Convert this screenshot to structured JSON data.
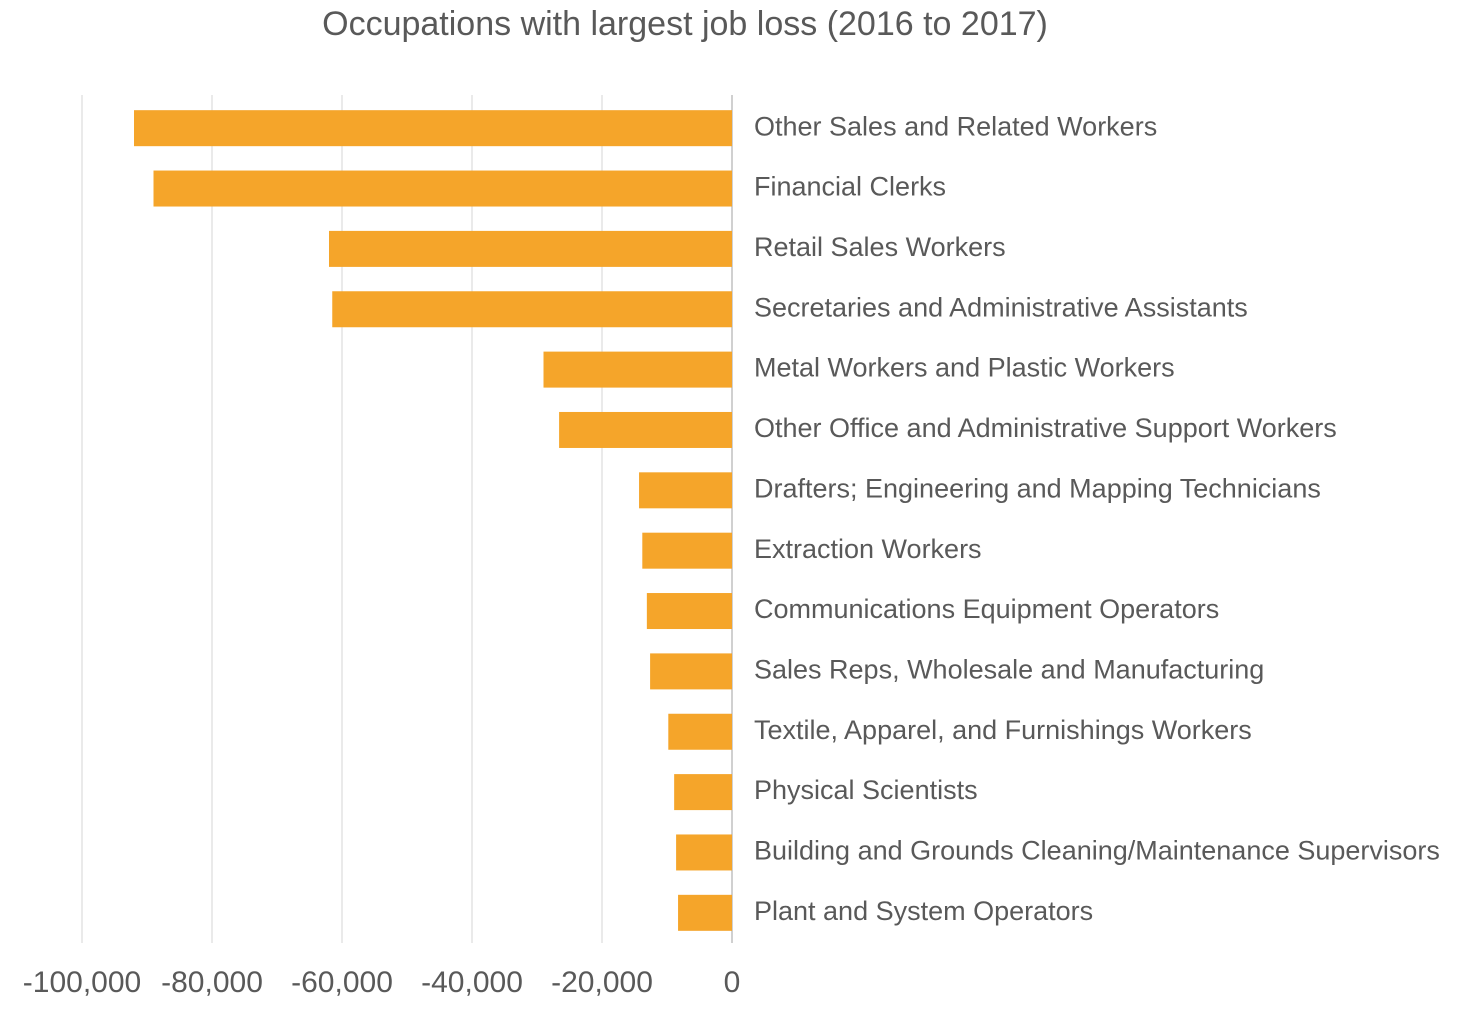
{
  "chart_data": {
    "type": "bar",
    "orientation": "horizontal",
    "title": "Occupations with largest job loss (2016 to 2017)",
    "categories": [
      "Other Sales and Related Workers",
      "Financial Clerks",
      "Retail Sales Workers",
      "Secretaries and Administrative Assistants",
      "Metal Workers and Plastic Workers",
      "Other Office and Administrative Support Workers",
      "Drafters; Engineering and Mapping Technicians",
      "Extraction Workers",
      "Communications Equipment Operators",
      "Sales Reps, Wholesale and Manufacturing",
      "Textile, Apparel, and Furnishings Workers",
      "Physical Scientists",
      "Building and Grounds Cleaning/Maintenance Supervisors",
      "Plant and System Operators"
    ],
    "values": [
      -92000,
      -89000,
      -62000,
      -61500,
      -29000,
      -26600,
      -14300,
      -13800,
      -13100,
      -12600,
      -9800,
      -8900,
      -8600,
      -8300
    ],
    "color": "#f5a52a",
    "xlim": [
      -100000,
      0
    ],
    "xticks": [
      {
        "value": -100000,
        "label": "-100,000"
      },
      {
        "value": -80000,
        "label": "-80,000"
      },
      {
        "value": -60000,
        "label": "-60,000"
      },
      {
        "value": -40000,
        "label": "-40,000"
      },
      {
        "value": -20000,
        "label": "-20,000"
      },
      0
    ],
    "grid": true
  }
}
